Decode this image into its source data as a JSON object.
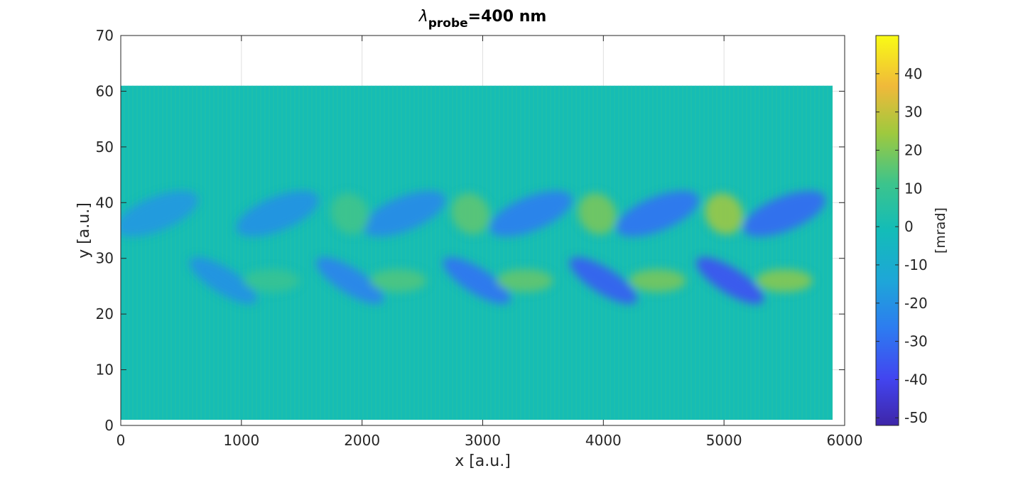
{
  "chart_data": {
    "type": "heatmap",
    "title": {
      "symbol": "λ",
      "subscript": "probe",
      "value": "=400 nm"
    },
    "xlabel": "x [a.u.]",
    "ylabel": "y [a.u.]",
    "xlim": [
      0,
      6000
    ],
    "ylim": [
      0,
      70
    ],
    "x_ticks": [
      0,
      1000,
      2000,
      3000,
      4000,
      5000,
      6000
    ],
    "y_ticks": [
      0,
      10,
      20,
      30,
      40,
      50,
      60,
      70
    ],
    "grid": true,
    "data_extent": {
      "x": [
        0,
        5900
      ],
      "y": [
        1,
        61
      ]
    },
    "background_value": 0,
    "colormap": "parula",
    "colorbar": {
      "label": "[mrad]",
      "range": [
        -52,
        50
      ],
      "ticks": [
        -50,
        -40,
        -30,
        -20,
        -10,
        0,
        10,
        20,
        30,
        40
      ],
      "tick_labels": [
        "-50",
        "-40",
        "-30",
        "-20",
        "-10",
        "0",
        "10",
        "20",
        "30",
        "40"
      ]
    },
    "features": [
      {
        "kind": "upper-lobe",
        "x": 300,
        "y": 38,
        "value": -18
      },
      {
        "kind": "upper-lobe",
        "x": 1300,
        "y": 38,
        "value": -20
      },
      {
        "kind": "upper-lobe",
        "x": 2350,
        "y": 38,
        "value": -22
      },
      {
        "kind": "upper-lobe",
        "x": 3400,
        "y": 38,
        "value": -25
      },
      {
        "kind": "upper-lobe",
        "x": 4450,
        "y": 38,
        "value": -28
      },
      {
        "kind": "upper-lobe",
        "x": 5500,
        "y": 38,
        "value": -30
      },
      {
        "kind": "lower-lobe",
        "x": 850,
        "y": 26,
        "value": -20
      },
      {
        "kind": "lower-lobe",
        "x": 1900,
        "y": 26,
        "value": -24
      },
      {
        "kind": "lower-lobe",
        "x": 2950,
        "y": 26,
        "value": -28
      },
      {
        "kind": "lower-lobe",
        "x": 4000,
        "y": 26,
        "value": -33
      },
      {
        "kind": "lower-lobe",
        "x": 5050,
        "y": 26,
        "value": -36
      },
      {
        "kind": "positive-upper",
        "x": 1900,
        "y": 38,
        "value": 12
      },
      {
        "kind": "positive-upper",
        "x": 2900,
        "y": 38,
        "value": 16
      },
      {
        "kind": "positive-upper",
        "x": 3950,
        "y": 38,
        "value": 20
      },
      {
        "kind": "positive-upper",
        "x": 5000,
        "y": 38,
        "value": 25
      },
      {
        "kind": "positive-lower",
        "x": 1250,
        "y": 26,
        "value": 10
      },
      {
        "kind": "positive-lower",
        "x": 2300,
        "y": 26,
        "value": 14
      },
      {
        "kind": "positive-lower",
        "x": 3350,
        "y": 26,
        "value": 17
      },
      {
        "kind": "positive-lower",
        "x": 4450,
        "y": 26,
        "value": 20
      },
      {
        "kind": "positive-lower",
        "x": 5500,
        "y": 26,
        "value": 22
      }
    ]
  }
}
